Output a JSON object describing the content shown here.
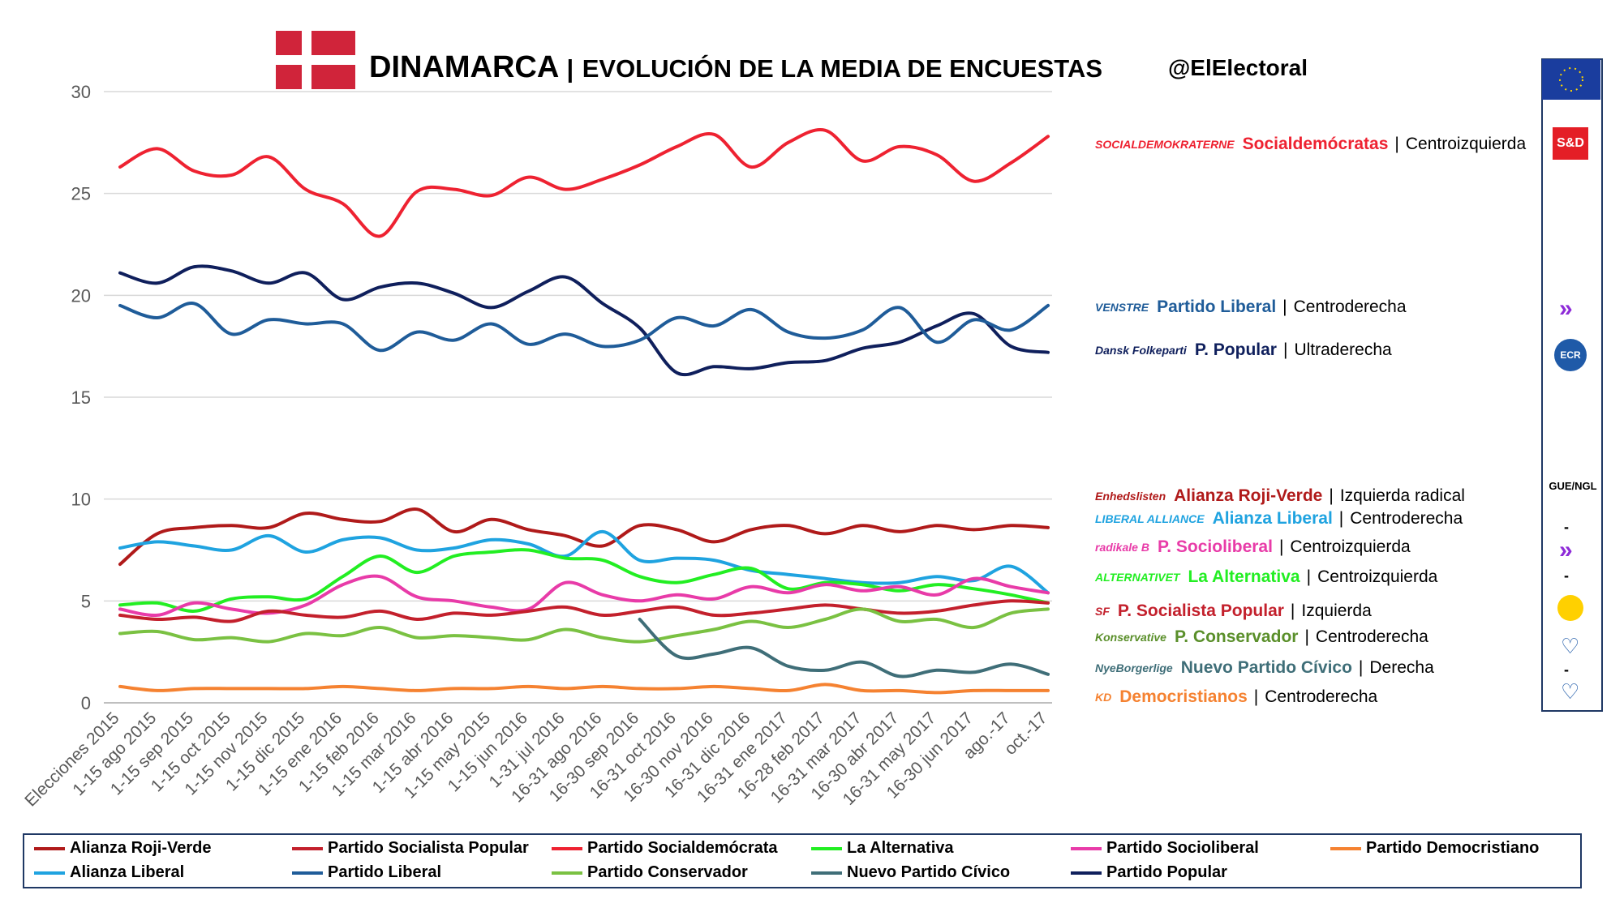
{
  "header": {
    "country": "DINAMARCA",
    "separator": "|",
    "title": "EVOLUCIÓN DE LA MEDIA DE ENCUESTAS",
    "handle": "@ElElectoral"
  },
  "colors": {
    "alianza_roji_verde": "#b01a1a",
    "socialista_popular": "#c3202c",
    "socialdemocrata": "#ee2231",
    "la_alternativa": "#22ee22",
    "socioliberal": "#e83ba8",
    "democristiano": "#f58231",
    "alianza_liberal": "#1fa3e0",
    "partido_liberal": "#1f5c99",
    "conservador": "#7ac142",
    "nuevo_civico": "#3f6e78",
    "partido_popular": "#0f1f5c",
    "grid": "#d9d9d9",
    "axis": "#bfbfbf"
  },
  "parties": [
    {
      "logo": "SOCIALDEMOKRATERNE",
      "name": "Socialdemócratas",
      "separator": "|",
      "ideology": "Centroizquierda",
      "color": "#ee2231"
    },
    {
      "logo": "VENSTRE",
      "name": "Partido Liberal",
      "separator": "|",
      "ideology": "Centroderecha",
      "color": "#1f5c99"
    },
    {
      "logo": "Dansk Folkeparti",
      "name": "P. Popular",
      "separator": "|",
      "ideology": "Ultraderecha",
      "color": "#0f1f5c"
    },
    {
      "logo": "Enhedslisten",
      "name": "Alianza Roji-Verde",
      "separator": "|",
      "ideology": "Izquierda radical",
      "color": "#b01a1a"
    },
    {
      "logo": "LIBERAL ALLIANCE",
      "name": "Alianza Liberal",
      "separator": "|",
      "ideology": "Centroderecha",
      "color": "#1fa3e0"
    },
    {
      "logo": "radikale B",
      "name": "P. Socioliberal",
      "separator": "|",
      "ideology": "Centroizquierda",
      "color": "#e83ba8"
    },
    {
      "logo": "ALTERNATIVET",
      "name": "La Alternativa",
      "separator": "|",
      "ideology": "Centroizquierda",
      "color": "#22ee22"
    },
    {
      "logo": "SF",
      "name": "P. Socialista Popular",
      "separator": "|",
      "ideology": "Izquierda",
      "color": "#c3202c"
    },
    {
      "logo": "Konservative",
      "name": "P. Conservador",
      "separator": "|",
      "ideology": "Centroderecha",
      "color": "#5a8f2a"
    },
    {
      "logo": "NyeBorgerlige",
      "name": "Nuevo Partido Cívico",
      "separator": "|",
      "ideology": "Derecha",
      "color": "#3f6e78"
    },
    {
      "logo": "KD",
      "name": "Democristianos",
      "separator": "|",
      "ideology": "Centroderecha",
      "color": "#f58231"
    }
  ],
  "eu_groups": [
    "S&D",
    "ECR",
    "GUE/NGL",
    "-",
    "-",
    "-"
  ],
  "chart_data": {
    "type": "line",
    "title": "EVOLUCIÓN DE LA MEDIA DE ENCUESTAS",
    "ylim": [
      0,
      30
    ],
    "yticks": [
      0,
      5,
      10,
      15,
      20,
      25,
      30
    ],
    "grid": true,
    "legend_position": "bottom",
    "categories": [
      "Elecciones 2015",
      "1-15 ago 2015",
      "1-15 sep 2015",
      "1-15 oct 2015",
      "1-15 nov 2015",
      "1-15 dic 2015",
      "1-15 ene 2016",
      "1-15 feb 2016",
      "1-15 mar 2016",
      "1-15 abr 2016",
      "1-15 may 2015",
      "1-15 jun 2016",
      "1-31 jul 2016",
      "16-31 ago 2016",
      "16-30 sep 2016",
      "16-31 oct 2016",
      "16-30 nov 2016",
      "16-31 dic 2016",
      "16-31 ene 2017",
      "16-28 feb 2017",
      "16-31 mar 2017",
      "16-30 abr 2017",
      "16-31 may 2017",
      "16-30 jun 2017",
      "ago.-17",
      "oct.-17"
    ],
    "series": [
      {
        "name": "Partido Socialdemócrata",
        "color": "#ee2231",
        "values": [
          26.3,
          27.2,
          26.1,
          25.9,
          26.8,
          25.2,
          24.5,
          22.9,
          25.1,
          25.2,
          24.9,
          25.8,
          25.2,
          25.7,
          26.4,
          27.3,
          27.9,
          26.3,
          27.5,
          28.1,
          26.6,
          27.3,
          26.9,
          25.6,
          26.5,
          27.8
        ]
      },
      {
        "name": "Partido Popular",
        "color": "#0f1f5c",
        "values": [
          21.1,
          20.6,
          21.4,
          21.2,
          20.6,
          21.1,
          19.8,
          20.4,
          20.6,
          20.1,
          19.4,
          20.2,
          20.9,
          19.6,
          18.4,
          16.2,
          16.5,
          16.4,
          16.7,
          16.8,
          17.4,
          17.7,
          18.5,
          19.1,
          17.5,
          17.2
        ]
      },
      {
        "name": "Partido Liberal",
        "color": "#1f5c99",
        "values": [
          19.5,
          18.9,
          19.6,
          18.1,
          18.8,
          18.6,
          18.6,
          17.3,
          18.2,
          17.8,
          18.6,
          17.6,
          18.1,
          17.5,
          17.8,
          18.9,
          18.5,
          19.3,
          18.2,
          17.9,
          18.3,
          19.4,
          17.7,
          18.8,
          18.3,
          19.5
        ]
      },
      {
        "name": "Alianza Roji-Verde",
        "color": "#b01a1a",
        "values": [
          6.8,
          8.3,
          8.6,
          8.7,
          8.6,
          9.3,
          9.0,
          8.9,
          9.5,
          8.4,
          9.0,
          8.5,
          8.2,
          7.7,
          8.7,
          8.5,
          7.9,
          8.5,
          8.7,
          8.3,
          8.7,
          8.4,
          8.7,
          8.5,
          8.7,
          8.6
        ]
      },
      {
        "name": "Alianza Liberal",
        "color": "#1fa3e0",
        "values": [
          7.6,
          7.9,
          7.7,
          7.5,
          8.2,
          7.4,
          8.0,
          8.1,
          7.5,
          7.6,
          8.0,
          7.8,
          7.2,
          8.4,
          7.0,
          7.1,
          7.0,
          6.5,
          6.3,
          6.1,
          5.9,
          5.9,
          6.2,
          6.0,
          6.7,
          5.4
        ]
      },
      {
        "name": "La Alternativa",
        "color": "#22ee22",
        "values": [
          4.8,
          4.9,
          4.5,
          5.1,
          5.2,
          5.1,
          6.2,
          7.2,
          6.4,
          7.2,
          7.4,
          7.5,
          7.1,
          7.0,
          6.2,
          5.9,
          6.3,
          6.6,
          5.6,
          5.9,
          5.8,
          5.5,
          5.8,
          5.6,
          5.3,
          4.9
        ]
      },
      {
        "name": "Partido Socioliberal",
        "color": "#e83ba8",
        "values": [
          4.6,
          4.3,
          4.9,
          4.6,
          4.4,
          4.8,
          5.8,
          6.2,
          5.2,
          5.0,
          4.7,
          4.6,
          5.9,
          5.3,
          5.0,
          5.3,
          5.1,
          5.7,
          5.4,
          5.8,
          5.5,
          5.7,
          5.3,
          6.1,
          5.7,
          5.4
        ]
      },
      {
        "name": "Partido Socialista Popular",
        "color": "#c3202c",
        "values": [
          4.3,
          4.1,
          4.2,
          4.0,
          4.5,
          4.3,
          4.2,
          4.5,
          4.1,
          4.4,
          4.3,
          4.5,
          4.7,
          4.3,
          4.5,
          4.7,
          4.3,
          4.4,
          4.6,
          4.8,
          4.6,
          4.4,
          4.5,
          4.8,
          5.0,
          4.9
        ]
      },
      {
        "name": "Partido Conservador",
        "color": "#7ac142",
        "values": [
          3.4,
          3.5,
          3.1,
          3.2,
          3.0,
          3.4,
          3.3,
          3.7,
          3.2,
          3.3,
          3.2,
          3.1,
          3.6,
          3.2,
          3.0,
          3.3,
          3.6,
          4.0,
          3.7,
          4.1,
          4.6,
          4.0,
          4.1,
          3.7,
          4.4,
          4.6
        ]
      },
      {
        "name": "Nuevo Partido Cívico",
        "color": "#3f6e78",
        "start": 14,
        "values": [
          null,
          null,
          null,
          null,
          null,
          null,
          null,
          null,
          null,
          null,
          null,
          null,
          null,
          null,
          4.1,
          2.3,
          2.4,
          2.7,
          1.8,
          1.6,
          2.0,
          1.3,
          1.6,
          1.5,
          1.9,
          1.4
        ]
      },
      {
        "name": "Partido Democristiano",
        "color": "#f58231",
        "values": [
          0.8,
          0.6,
          0.7,
          0.7,
          0.7,
          0.7,
          0.8,
          0.7,
          0.6,
          0.7,
          0.7,
          0.8,
          0.7,
          0.8,
          0.7,
          0.7,
          0.8,
          0.7,
          0.6,
          0.9,
          0.6,
          0.6,
          0.5,
          0.6,
          0.6,
          0.6
        ]
      }
    ]
  },
  "legend": [
    {
      "label": "Alianza Roji-Verde",
      "color": "#b01a1a"
    },
    {
      "label": "Partido Socialista Popular",
      "color": "#c3202c"
    },
    {
      "label": "Partido Socialdemócrata",
      "color": "#ee2231"
    },
    {
      "label": "La Alternativa",
      "color": "#22ee22"
    },
    {
      "label": "Partido Socioliberal",
      "color": "#e83ba8"
    },
    {
      "label": "Partido Democristiano",
      "color": "#f58231"
    },
    {
      "label": "Alianza Liberal",
      "color": "#1fa3e0"
    },
    {
      "label": "Partido Liberal",
      "color": "#1f5c99"
    },
    {
      "label": "Partido Conservador",
      "color": "#7ac142"
    },
    {
      "label": "Nuevo Partido Cívico",
      "color": "#3f6e78"
    },
    {
      "label": "Partido Popular",
      "color": "#0f1f5c"
    }
  ]
}
